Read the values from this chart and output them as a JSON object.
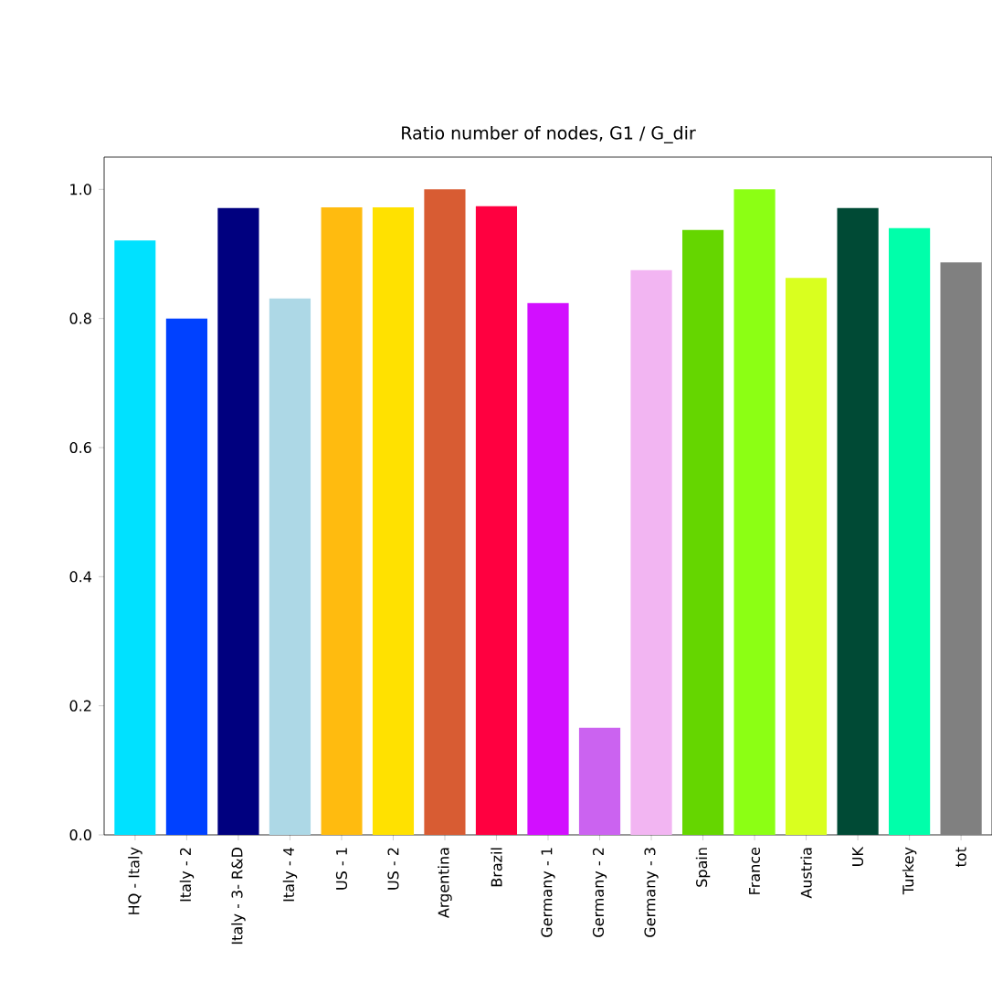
{
  "chart_data": {
    "type": "bar",
    "title": "Ratio number of nodes, G1 / G_dir",
    "categories": [
      "HQ - Italy",
      "Italy - 2",
      "Italy - 3- R&D",
      "Italy - 4",
      "US - 1",
      "US - 2",
      "Argentina",
      "Brazil",
      "Germany - 1",
      "Germany - 2",
      "Germany - 3",
      "Spain",
      "France",
      "Austria",
      "UK",
      "Turkey",
      "tot"
    ],
    "values": [
      0.921,
      0.8,
      0.971,
      0.831,
      0.972,
      0.972,
      1.0,
      0.974,
      0.824,
      0.166,
      0.875,
      0.937,
      1.0,
      0.863,
      0.971,
      0.94,
      0.887
    ],
    "colors": [
      "#00e1ff",
      "#0041ff",
      "#00007f",
      "#add8e6",
      "#ffbb0f",
      "#ffe100",
      "#d85c33",
      "#ff0040",
      "#d20fff",
      "#cb63f0",
      "#f2b5f2",
      "#65d600",
      "#8cff14",
      "#d9ff1f",
      "#004a35",
      "#00ffaa",
      "#808080"
    ],
    "ylim": [
      0,
      1.05
    ],
    "yticks": [
      {
        "value": 0,
        "label": "0.0"
      },
      {
        "value": 0.2,
        "label": "0.2"
      },
      {
        "value": 0.4,
        "label": "0.4"
      },
      {
        "value": 0.6,
        "label": "0.6"
      },
      {
        "value": 0.8,
        "label": "0.8"
      },
      {
        "value": 1.0,
        "label": "1.0"
      }
    ],
    "grid": false
  }
}
